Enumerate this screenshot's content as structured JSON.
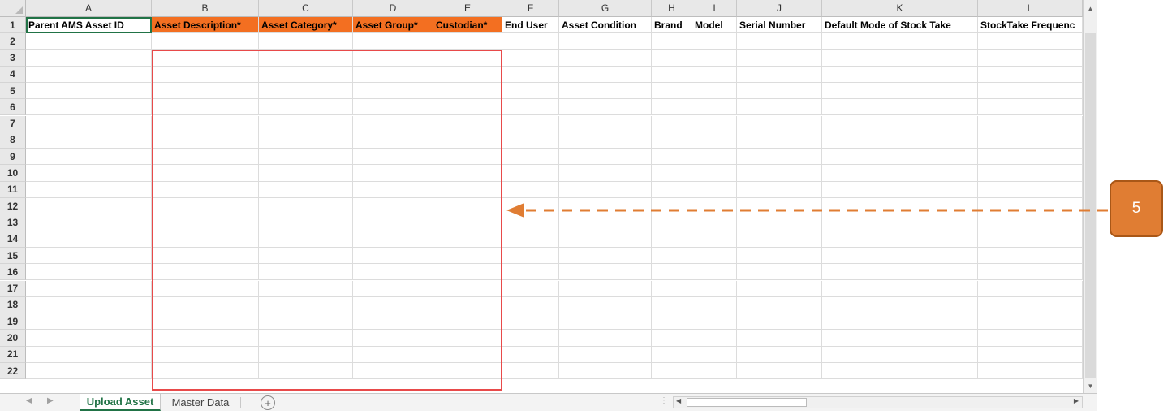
{
  "sheet": {
    "columns": [
      "A",
      "B",
      "C",
      "D",
      "E",
      "F",
      "G",
      "H",
      "I",
      "J",
      "K",
      "L"
    ],
    "rows": [
      "1",
      "2",
      "3",
      "4",
      "5",
      "6",
      "7",
      "8",
      "9",
      "10",
      "11",
      "12",
      "13",
      "14",
      "15",
      "16",
      "17",
      "18",
      "19",
      "20",
      "21",
      "22"
    ],
    "headers": [
      "Parent AMS Asset ID",
      "Asset Description*",
      "Asset Category*",
      "Asset Group*",
      "Custodian*",
      "End User",
      "Asset Condition",
      "Brand",
      "Model",
      "Serial Number",
      "Default Mode of Stock Take",
      "StockTake Frequenc"
    ],
    "required_fill_color": "#f36f21",
    "selected_cell": "A1"
  },
  "tabs": {
    "items": [
      "Upload Asset",
      "Master Data"
    ],
    "active": "Upload Asset",
    "add_icon": "plus-circle-icon",
    "nav_prev_icon": "chevron-left-icon",
    "nav_next_icon": "chevron-right-icon"
  },
  "annotation": {
    "step_number": "5",
    "badge_color": "#e07d33",
    "highlight_color": "#e84a4a"
  }
}
